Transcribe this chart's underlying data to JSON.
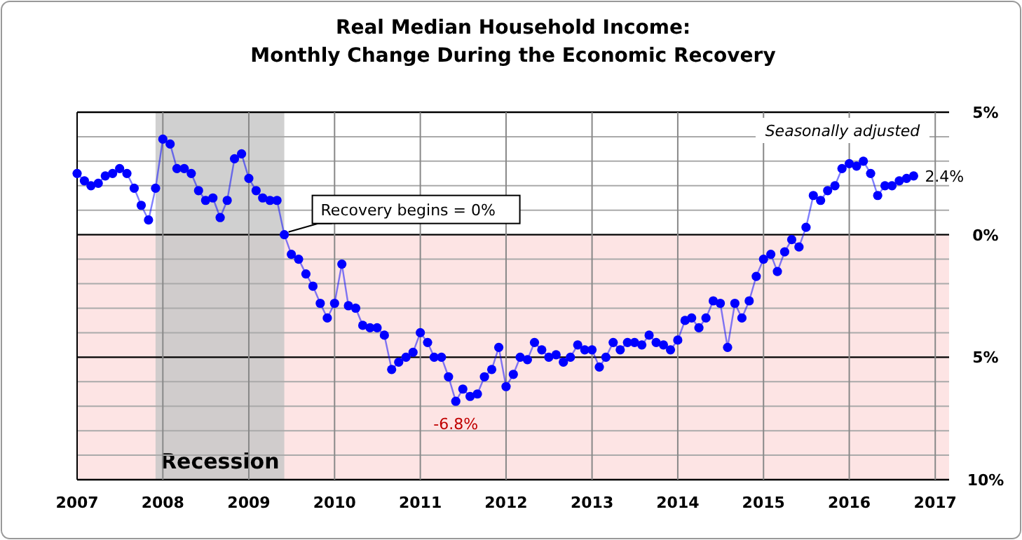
{
  "chart_data": {
    "type": "line",
    "title": "Real Median Household Income:",
    "subtitle": "Monthly Change During the Economic Recovery",
    "x": [
      "2007-01",
      "2007-02",
      "2007-03",
      "2007-04",
      "2007-05",
      "2007-06",
      "2007-07",
      "2007-08",
      "2007-09",
      "2007-10",
      "2007-11",
      "2007-12",
      "2008-01",
      "2008-02",
      "2008-03",
      "2008-04",
      "2008-05",
      "2008-06",
      "2008-07",
      "2008-08",
      "2008-09",
      "2008-10",
      "2008-11",
      "2008-12",
      "2009-01",
      "2009-02",
      "2009-03",
      "2009-04",
      "2009-05",
      "2009-06",
      "2009-07",
      "2009-08",
      "2009-09",
      "2009-10",
      "2009-11",
      "2009-12",
      "2010-01",
      "2010-02",
      "2010-03",
      "2010-04",
      "2010-05",
      "2010-06",
      "2010-07",
      "2010-08",
      "2010-09",
      "2010-10",
      "2010-11",
      "2010-12",
      "2011-01",
      "2011-02",
      "2011-03",
      "2011-04",
      "2011-05",
      "2011-06",
      "2011-07",
      "2011-08",
      "2011-09",
      "2011-10",
      "2011-11",
      "2011-12",
      "2012-01",
      "2012-02",
      "2012-03",
      "2012-04",
      "2012-05",
      "2012-06",
      "2012-07",
      "2012-08",
      "2012-09",
      "2012-10",
      "2012-11",
      "2012-12",
      "2013-01",
      "2013-02",
      "2013-03",
      "2013-04",
      "2013-05",
      "2013-06",
      "2013-07",
      "2013-08",
      "2013-09",
      "2013-10",
      "2013-11",
      "2013-12",
      "2014-01",
      "2014-02",
      "2014-03",
      "2014-04",
      "2014-05",
      "2014-06",
      "2014-07",
      "2014-08",
      "2014-09",
      "2014-10",
      "2014-11",
      "2014-12",
      "2015-01",
      "2015-02",
      "2015-03",
      "2015-04",
      "2015-05",
      "2015-06",
      "2015-07",
      "2015-08",
      "2015-09",
      "2015-10",
      "2015-11",
      "2015-12",
      "2016-01",
      "2016-02",
      "2016-03",
      "2016-04",
      "2016-05",
      "2016-06",
      "2016-07",
      "2016-08",
      "2016-09",
      "2016-10"
    ],
    "series": [
      {
        "color": "#0000ff",
        "values": [
          2.5,
          2.2,
          2.0,
          2.1,
          2.4,
          2.5,
          2.7,
          2.5,
          1.9,
          1.2,
          0.6,
          1.9,
          3.9,
          3.7,
          2.7,
          2.7,
          2.5,
          1.8,
          1.4,
          1.5,
          0.7,
          1.4,
          3.1,
          3.3,
          2.3,
          1.8,
          1.5,
          1.4,
          1.4,
          0,
          -0.8,
          -1.0,
          -1.6,
          -2.1,
          -2.8,
          -3.4,
          -2.8,
          -1.2,
          -2.9,
          -3.0,
          -3.7,
          -3.8,
          -3.8,
          -4.1,
          -5.5,
          -5.2,
          -5.0,
          -4.8,
          -4.0,
          -4.4,
          -5.0,
          -5.0,
          -5.8,
          -6.8,
          -6.3,
          -6.6,
          -6.5,
          -5.8,
          -5.5,
          -4.6,
          -6.2,
          -5.7,
          -5.0,
          -5.1,
          -4.4,
          -4.7,
          -5.0,
          -4.9,
          -5.2,
          -5.0,
          -4.5,
          -4.7,
          -4.7,
          -5.4,
          -5.0,
          -4.4,
          -4.7,
          -4.4,
          -4.4,
          -4.5,
          -4.1,
          -4.4,
          -4.5,
          -4.7,
          -4.3,
          -3.5,
          -3.4,
          -3.8,
          -3.4,
          -2.7,
          -2.8,
          -4.6,
          -2.8,
          -3.4,
          -2.7,
          -1.7,
          -1.0,
          -0.8,
          -1.5,
          -0.7,
          -0.2,
          -0.5,
          0.3,
          1.6,
          1.4,
          1.8,
          2.0,
          2.7,
          2.9,
          2.8,
          3.0,
          2.5,
          1.6,
          2.0,
          2.0,
          2.2,
          2.3,
          2.4
        ]
      }
    ],
    "xlim": [
      "2007-01",
      "2017-03"
    ],
    "xticks": [
      "2007",
      "2008",
      "2009",
      "2010",
      "2011",
      "2012",
      "2013",
      "2014",
      "2015",
      "2016",
      "2017"
    ],
    "ylim": [
      -10,
      5
    ],
    "yticks": [
      {
        "value": 5,
        "label": "5%"
      },
      {
        "value": 4,
        "label": null
      },
      {
        "value": 3,
        "label": null
      },
      {
        "value": 2,
        "label": null
      },
      {
        "value": 1,
        "label": null
      },
      {
        "value": 0,
        "label": "0%"
      },
      {
        "value": -1,
        "label": null
      },
      {
        "value": -2,
        "label": null
      },
      {
        "value": -3,
        "label": null
      },
      {
        "value": -4,
        "label": null
      },
      {
        "value": -5,
        "label": "5%"
      },
      {
        "value": -6,
        "label": null
      },
      {
        "value": -7,
        "label": null
      },
      {
        "value": -8,
        "label": null
      },
      {
        "value": -9,
        "label": null
      },
      {
        "value": -10,
        "label": "10%"
      }
    ],
    "grid": true,
    "marker": "circle",
    "line_style": "solid",
    "bands": [
      {
        "axis": "y",
        "from": -10,
        "to": 0,
        "color": "#fde4e4"
      },
      {
        "axis": "x",
        "from": "2007-12",
        "to": "2009-06",
        "label": "Recession",
        "color": "#c8c8c8"
      }
    ],
    "annotations": [
      {
        "text": "Recovery begins = 0%",
        "x": "2009-06",
        "y": 0
      },
      {
        "text": "-6.8%",
        "x": "2011-06",
        "y": -6.8
      },
      {
        "text": "2.4%",
        "x": "2016-10",
        "y": 2.4
      },
      "Seasonally adjusted"
    ]
  }
}
